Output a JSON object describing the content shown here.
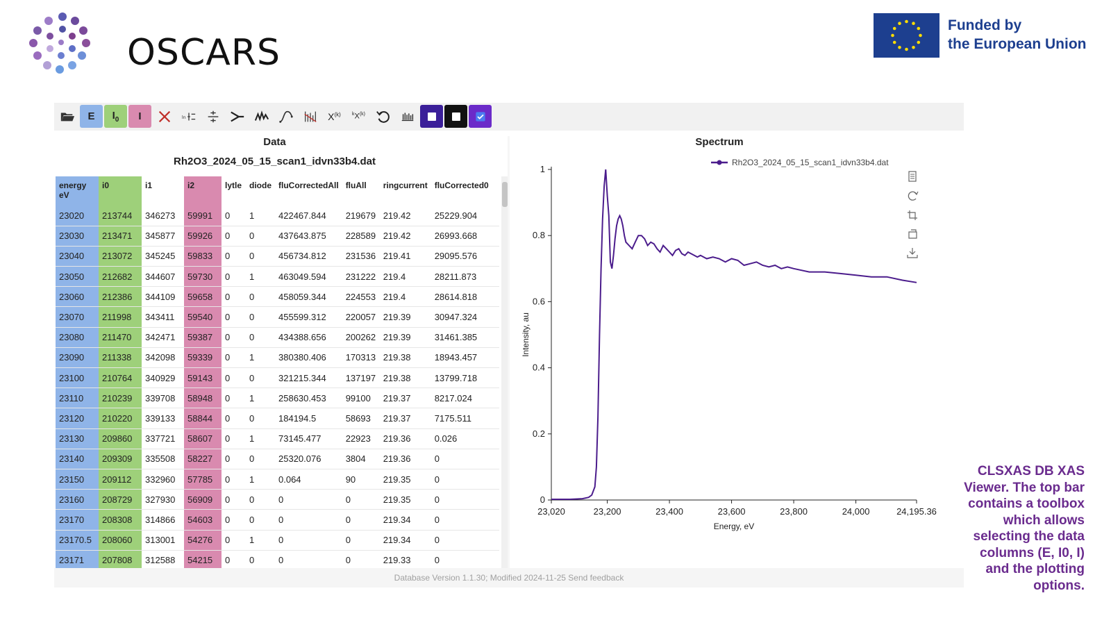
{
  "header": {
    "brand": "OSCARS",
    "funding_line1": "Funded by",
    "funding_line2": "the European Union"
  },
  "toolbar": {
    "buttons": [
      {
        "name": "open-folder",
        "label": ""
      },
      {
        "name": "select-energy",
        "label": "E",
        "color": "#8fb4e8"
      },
      {
        "name": "select-i0",
        "label": "I0",
        "color": "#9ed07a"
      },
      {
        "name": "select-i",
        "label": "I",
        "color": "#d98aaf"
      },
      {
        "name": "clear-selection",
        "label": ""
      },
      {
        "name": "normalize-ln",
        "label": ""
      },
      {
        "name": "divide",
        "label": ""
      },
      {
        "name": "merge",
        "label": ""
      },
      {
        "name": "smooth",
        "label": ""
      },
      {
        "name": "integrate",
        "label": ""
      },
      {
        "name": "deglitch",
        "label": ""
      },
      {
        "name": "chi-k",
        "label": "X(k)"
      },
      {
        "name": "k-weight",
        "label": "kⁿX(k)"
      },
      {
        "name": "reset",
        "label": ""
      },
      {
        "name": "table-toggle",
        "label": ""
      },
      {
        "name": "toggle-1",
        "label": "",
        "color": "#3b1f99"
      },
      {
        "name": "toggle-2",
        "label": "",
        "color": "#111111"
      },
      {
        "name": "toggle-3",
        "label": "",
        "color": "#6b2bc9"
      }
    ]
  },
  "data_panel": {
    "title": "Data",
    "file": "Rh2O3_2024_05_15_scan1_idvn33b4.dat",
    "columns": [
      "energy eV",
      "i0",
      "i1",
      "i2",
      "lytle",
      "diode",
      "fluCorrectedAll",
      "fluAll",
      "ringcurrent",
      "fluCorrected0"
    ],
    "rows": [
      [
        "23020",
        "213744",
        "346273",
        "59991",
        "0",
        "1",
        "422467.844",
        "219679",
        "219.42",
        "25229.904"
      ],
      [
        "23030",
        "213471",
        "345877",
        "59926",
        "0",
        "0",
        "437643.875",
        "228589",
        "219.42",
        "26993.668"
      ],
      [
        "23040",
        "213072",
        "345245",
        "59833",
        "0",
        "0",
        "456734.812",
        "231536",
        "219.41",
        "29095.576"
      ],
      [
        "23050",
        "212682",
        "344607",
        "59730",
        "0",
        "1",
        "463049.594",
        "231222",
        "219.4",
        "28211.873"
      ],
      [
        "23060",
        "212386",
        "344109",
        "59658",
        "0",
        "0",
        "458059.344",
        "224553",
        "219.4",
        "28614.818"
      ],
      [
        "23070",
        "211998",
        "343411",
        "59540",
        "0",
        "0",
        "455599.312",
        "220057",
        "219.39",
        "30947.324"
      ],
      [
        "23080",
        "211470",
        "342471",
        "59387",
        "0",
        "0",
        "434388.656",
        "200262",
        "219.39",
        "31461.385"
      ],
      [
        "23090",
        "211338",
        "342098",
        "59339",
        "0",
        "1",
        "380380.406",
        "170313",
        "219.38",
        "18943.457"
      ],
      [
        "23100",
        "210764",
        "340929",
        "59143",
        "0",
        "0",
        "321215.344",
        "137197",
        "219.38",
        "13799.718"
      ],
      [
        "23110",
        "210239",
        "339708",
        "58948",
        "0",
        "1",
        "258630.453",
        "99100",
        "219.37",
        "8217.024"
      ],
      [
        "23120",
        "210220",
        "339133",
        "58844",
        "0",
        "0",
        "184194.5",
        "58693",
        "219.37",
        "7175.511"
      ],
      [
        "23130",
        "209860",
        "337721",
        "58607",
        "0",
        "1",
        "73145.477",
        "22923",
        "219.36",
        "0.026"
      ],
      [
        "23140",
        "209309",
        "335508",
        "58227",
        "0",
        "0",
        "25320.076",
        "3804",
        "219.36",
        "0"
      ],
      [
        "23150",
        "209112",
        "332960",
        "57785",
        "0",
        "1",
        "0.064",
        "90",
        "219.35",
        "0"
      ],
      [
        "23160",
        "208729",
        "327930",
        "56909",
        "0",
        "0",
        "0",
        "0",
        "219.35",
        "0"
      ],
      [
        "23170",
        "208308",
        "314866",
        "54603",
        "0",
        "0",
        "0",
        "0",
        "219.34",
        "0"
      ],
      [
        "23170.5",
        "208060",
        "313001",
        "54276",
        "0",
        "1",
        "0",
        "0",
        "219.34",
        "0"
      ],
      [
        "23171",
        "207808",
        "312588",
        "54215",
        "0",
        "0",
        "0",
        "0",
        "219.33",
        "0"
      ]
    ]
  },
  "spectrum_panel": {
    "title": "Spectrum"
  },
  "chart_data": {
    "type": "line",
    "title": "",
    "xlabel": "Energy, eV",
    "ylabel": "Intensity, au",
    "xlim": [
      23020,
      24195.36
    ],
    "ylim": [
      0,
      1
    ],
    "xticks": [
      "23,020",
      "23,200",
      "23,400",
      "23,600",
      "23,800",
      "24,000",
      "24,195.36"
    ],
    "xtick_values": [
      23020,
      23200,
      23400,
      23600,
      23800,
      24000,
      24195.36
    ],
    "yticks": [
      "0",
      "0.2",
      "0.4",
      "0.6",
      "0.8",
      "1"
    ],
    "ytick_values": [
      0,
      0.2,
      0.4,
      0.6,
      0.8,
      1
    ],
    "legend_position": "top-right",
    "grid": false,
    "series": [
      {
        "name": "Rh2O3_2024_05_15_scan1_idvn33b4.dat",
        "color": "#4b1c8c",
        "x": [
          23020,
          23080,
          23120,
          23140,
          23150,
          23160,
          23165,
          23170,
          23175,
          23180,
          23185,
          23190,
          23195,
          23200,
          23205,
          23210,
          23215,
          23220,
          23225,
          23230,
          23235,
          23240,
          23245,
          23250,
          23255,
          23260,
          23270,
          23280,
          23290,
          23300,
          23310,
          23320,
          23330,
          23340,
          23350,
          23360,
          23370,
          23380,
          23390,
          23400,
          23410,
          23420,
          23430,
          23440,
          23450,
          23460,
          23470,
          23480,
          23490,
          23500,
          23520,
          23540,
          23560,
          23580,
          23600,
          23620,
          23640,
          23660,
          23680,
          23700,
          23720,
          23740,
          23760,
          23780,
          23800,
          23850,
          23900,
          23950,
          24000,
          24050,
          24100,
          24150,
          24195.36
        ],
        "y": [
          0.002,
          0.002,
          0.004,
          0.008,
          0.015,
          0.04,
          0.1,
          0.25,
          0.5,
          0.7,
          0.85,
          0.95,
          1.0,
          0.92,
          0.86,
          0.72,
          0.7,
          0.74,
          0.79,
          0.83,
          0.85,
          0.86,
          0.85,
          0.83,
          0.8,
          0.78,
          0.77,
          0.76,
          0.78,
          0.8,
          0.8,
          0.79,
          0.77,
          0.78,
          0.775,
          0.76,
          0.75,
          0.77,
          0.76,
          0.75,
          0.74,
          0.755,
          0.76,
          0.745,
          0.74,
          0.75,
          0.745,
          0.74,
          0.735,
          0.74,
          0.73,
          0.735,
          0.73,
          0.72,
          0.73,
          0.725,
          0.71,
          0.715,
          0.72,
          0.71,
          0.705,
          0.71,
          0.7,
          0.705,
          0.7,
          0.69,
          0.69,
          0.685,
          0.68,
          0.675,
          0.675,
          0.665,
          0.658
        ]
      }
    ]
  },
  "footer": {
    "text": "Database Version 1.1.30; Modified 2024-11-25 Send feedback"
  },
  "caption": {
    "text": "CLSXAS DB XAS Viewer. The top bar contains a toolbox which allows selecting the data columns (E, I0, I) and the plotting options."
  },
  "plot_tools": [
    "csv-export-icon",
    "refresh-icon",
    "crop-icon",
    "crop-reset-icon",
    "download-icon"
  ]
}
